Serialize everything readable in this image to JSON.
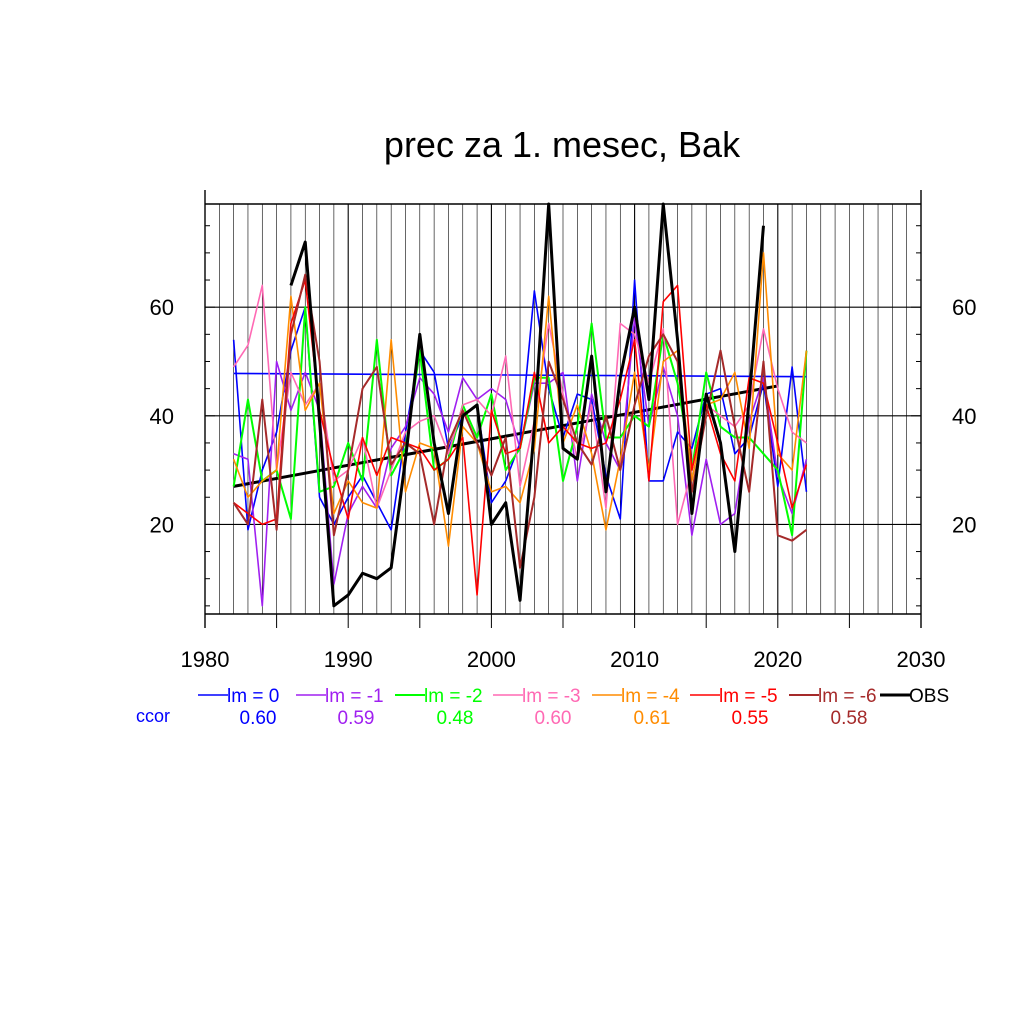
{
  "chart_data": {
    "type": "line",
    "title": "prec za 1. mesec, Bak",
    "xlabel": "",
    "ylabel": "",
    "xlim": [
      1980,
      2030
    ],
    "ylim": [
      3.5,
      79
    ],
    "x_ticks": [
      "1980",
      "1990",
      "2000",
      "2010",
      "2020",
      "2030"
    ],
    "y_ticks": [
      "20",
      "40",
      "60"
    ],
    "grid": true,
    "legend_position": "bottom",
    "corr_label": "ccor",
    "series": [
      {
        "name": "lm = 0",
        "color": "#0000ff",
        "ccor": "0.60",
        "width": 1.6,
        "x": [
          1982,
          1983,
          1984,
          1985,
          1986,
          1987,
          1988,
          1989,
          1990,
          1991,
          1992,
          1993,
          1994,
          1995,
          1996,
          1997,
          1998,
          1999,
          2000,
          2001,
          2002,
          2003,
          2004,
          2005,
          2006,
          2007,
          2008,
          2009,
          2010,
          2011,
          2012,
          2013,
          2014,
          2015,
          2016,
          2017,
          2018,
          2019,
          2020,
          2021,
          2022
        ],
        "values": [
          54,
          19,
          30,
          37,
          52,
          60,
          25,
          20,
          25,
          29,
          24,
          19,
          37,
          52,
          48,
          34,
          40,
          42,
          24,
          28,
          35,
          63,
          45,
          36,
          44,
          43,
          29,
          21,
          65,
          28,
          28,
          37,
          34,
          44,
          45,
          33,
          36,
          46,
          27,
          49,
          26
        ]
      },
      {
        "name": "lm = -1",
        "color": "#a020f0",
        "ccor": "0.59",
        "width": 1.6,
        "x": [
          1982,
          1983,
          1984,
          1985,
          1986,
          1987,
          1988,
          1989,
          1990,
          1991,
          1992,
          1993,
          1994,
          1995,
          1996,
          1997,
          1998,
          1999,
          2000,
          2001,
          2002,
          2003,
          2004,
          2005,
          2006,
          2007,
          2008,
          2009,
          2010,
          2011,
          2012,
          2013,
          2014,
          2015,
          2016,
          2017,
          2018,
          2019,
          2020,
          2021,
          2022
        ],
        "values": [
          33,
          32,
          5,
          50,
          41,
          48,
          41,
          9,
          22,
          27,
          23,
          34,
          38,
          47,
          44,
          37,
          47,
          43,
          45,
          43,
          34,
          46,
          46,
          48,
          28,
          44,
          35,
          30,
          58,
          38,
          49,
          40,
          18,
          32,
          20,
          22,
          39,
          47,
          29,
          22,
          32
        ]
      },
      {
        "name": "lm = -2",
        "color": "#00ff00",
        "ccor": "0.48",
        "width": 2.0,
        "x": [
          1982,
          1983,
          1984,
          1985,
          1986,
          1987,
          1988,
          1989,
          1990,
          1991,
          1992,
          1993,
          1994,
          1995,
          1996,
          1997,
          1998,
          1999,
          2000,
          2001,
          2002,
          2003,
          2004,
          2005,
          2006,
          2007,
          2008,
          2009,
          2010,
          2011,
          2012,
          2013,
          2014,
          2015,
          2016,
          2017,
          2018,
          2019,
          2020,
          2021,
          2022
        ],
        "values": [
          27,
          43,
          28,
          30,
          21,
          60,
          26,
          27,
          35,
          28,
          54,
          29,
          34,
          52,
          30,
          32,
          42,
          36,
          44,
          30,
          34,
          47,
          47,
          28,
          38,
          57,
          36,
          36,
          40,
          38,
          55,
          46,
          30,
          48,
          38,
          36,
          36,
          33,
          30,
          18,
          52
        ]
      },
      {
        "name": "lm = -3",
        "color": "#ff69b4",
        "ccor": "0.60",
        "width": 1.6,
        "x": [
          1982,
          1983,
          1984,
          1985,
          1986,
          1987,
          1988,
          1989,
          1990,
          1991,
          1992,
          1993,
          1994,
          1995,
          1996,
          1997,
          1998,
          1999,
          2000,
          2001,
          2002,
          2003,
          2004,
          2005,
          2006,
          2007,
          2008,
          2009,
          2010,
          2011,
          2012,
          2013,
          2014,
          2015,
          2016,
          2017,
          2018,
          2019,
          2020,
          2021,
          2022
        ],
        "values": [
          49,
          53,
          64,
          30,
          48,
          42,
          46,
          28,
          30,
          36,
          23,
          30,
          37,
          39,
          40,
          33,
          42,
          43,
          40,
          51,
          27,
          39,
          57,
          44,
          32,
          42,
          23,
          57,
          55,
          46,
          56,
          20,
          30,
          42,
          40,
          38,
          42,
          56,
          45,
          37,
          35
        ]
      },
      {
        "name": "lm = -4",
        "color": "#ff8c00",
        "ccor": "0.61",
        "width": 1.6,
        "x": [
          1982,
          1983,
          1984,
          1985,
          1986,
          1987,
          1988,
          1989,
          1990,
          1991,
          1992,
          1993,
          1994,
          1995,
          1996,
          1997,
          1998,
          1999,
          2000,
          2001,
          2002,
          2003,
          2004,
          2005,
          2006,
          2007,
          2008,
          2009,
          2010,
          2011,
          2012,
          2013,
          2014,
          2015,
          2016,
          2017,
          2018,
          2019,
          2020,
          2021,
          2022
        ],
        "values": [
          32,
          25,
          28,
          30,
          62,
          41,
          46,
          22,
          28,
          24,
          23,
          54,
          26,
          35,
          34,
          16,
          38,
          35,
          26,
          27,
          24,
          34,
          62,
          35,
          42,
          33,
          19,
          32,
          48,
          30,
          50,
          52,
          28,
          42,
          43,
          48,
          34,
          70,
          33,
          30,
          52
        ]
      },
      {
        "name": "lm = -5",
        "color": "#ff0000",
        "ccor": "0.55",
        "width": 1.6,
        "x": [
          1982,
          1983,
          1984,
          1985,
          1986,
          1987,
          1988,
          1989,
          1990,
          1991,
          1992,
          1993,
          1994,
          1995,
          1996,
          1997,
          1998,
          1999,
          2000,
          2001,
          2002,
          2003,
          2004,
          2005,
          2006,
          2007,
          2008,
          2009,
          2010,
          2011,
          2012,
          2013,
          2014,
          2015,
          2016,
          2017,
          2018,
          2019,
          2020,
          2021,
          2022
        ],
        "values": [
          24,
          22,
          20,
          21,
          57,
          65,
          41,
          30,
          21,
          36,
          29,
          36,
          35,
          34,
          30,
          32,
          36,
          7,
          41,
          33,
          34,
          48,
          35,
          38,
          35,
          34,
          35,
          43,
          54,
          28,
          61,
          64,
          30,
          42,
          33,
          28,
          47,
          46,
          35,
          23,
          31
        ]
      },
      {
        "name": "lm = -6",
        "color": "#a52a2a",
        "ccor": "0.58",
        "width": 2.0,
        "x": [
          1982,
          1983,
          1984,
          1985,
          1986,
          1987,
          1988,
          1989,
          1990,
          1991,
          1992,
          1993,
          1994,
          1995,
          1996,
          1997,
          1998,
          1999,
          2000,
          2001,
          2002,
          2003,
          2004,
          2005,
          2006,
          2007,
          2008,
          2009,
          2010,
          2011,
          2012,
          2013,
          2014,
          2015,
          2016,
          2017,
          2018,
          2019,
          2020,
          2021,
          2022
        ],
        "values": [
          24,
          20,
          43,
          19,
          55,
          66,
          50,
          18,
          30,
          45,
          49,
          31,
          35,
          33,
          20,
          35,
          41,
          35,
          29,
          36,
          12,
          25,
          50,
          43,
          35,
          31,
          40,
          30,
          42,
          51,
          55,
          50,
          26,
          40,
          52,
          38,
          26,
          50,
          18,
          17,
          19
        ]
      },
      {
        "name": "OBS",
        "color": "#000000",
        "ccor": "",
        "width": 3.0,
        "x": [
          1986,
          1987,
          1988,
          1989,
          1990,
          1991,
          1992,
          1993,
          1994,
          1995,
          1996,
          1997,
          1998,
          1999,
          2000,
          2001,
          2002,
          2003,
          2004,
          2005,
          2006,
          2007,
          2008,
          2009,
          2010,
          2011,
          2012,
          2013,
          2014,
          2015,
          2016,
          2017,
          2018,
          2019
        ],
        "values": [
          64,
          72,
          39,
          5,
          7,
          11,
          10,
          12,
          32,
          55,
          35,
          22,
          40,
          42,
          20,
          24,
          6,
          38,
          79,
          34,
          32,
          51,
          26,
          47,
          60,
          43,
          79,
          54,
          22,
          44,
          35,
          15,
          43,
          75
        ]
      }
    ],
    "trend_lines": [
      {
        "name": "lm = 0 trend",
        "color": "#0000ff",
        "width": 1.6,
        "x": [
          1982,
          2022
        ],
        "values": [
          47.8,
          47.2
        ]
      },
      {
        "name": "OBS trend",
        "color": "#000000",
        "width": 3.0,
        "x": [
          1982,
          2020
        ],
        "values": [
          27.0,
          45.5
        ]
      }
    ]
  }
}
